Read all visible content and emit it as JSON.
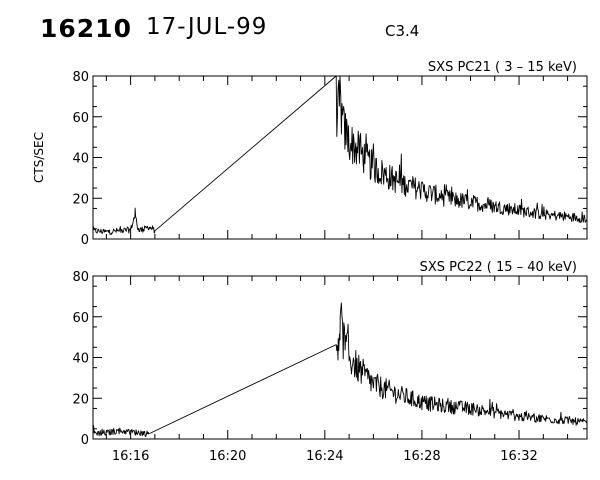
{
  "header": {
    "event_id": "16210",
    "date": "17-JUL-99",
    "flare_class": "C3.4"
  },
  "chart_data": [
    {
      "type": "line",
      "title": "SXS PC21  (  3 – 15 keV)",
      "ylabel": "CTS/SEC",
      "xlabel": "",
      "x_unit": "time (HH:MM, UT)",
      "ylim": [
        0,
        80
      ],
      "yticks": [
        0,
        20,
        40,
        60,
        80
      ],
      "xlim": [
        "16:14:27",
        "16:34:48"
      ],
      "xtick_labels": [
        "16:16",
        "16:20",
        "16:24",
        "16:28",
        "16:32"
      ],
      "grid": false,
      "series": [
        {
          "x": [
            "16:14:27",
            "16:15:00",
            "16:15:30",
            "16:16:00",
            "16:16:11",
            "16:16:18",
            "16:16:30",
            "16:16:45",
            "16:17:00",
            "16:24:28",
            "16:24:33",
            "16:24:38",
            "16:24:45",
            "16:25:00",
            "16:25:30",
            "16:26:00",
            "16:27:00",
            "16:28:00",
            "16:29:00",
            "16:30:00",
            "16:31:00",
            "16:32:00",
            "16:33:00",
            "16:34:00",
            "16:34:48"
          ],
          "y": [
            4,
            3.5,
            4,
            4.5,
            12,
            5,
            4.5,
            6,
            4,
            64,
            62,
            69,
            55,
            48,
            42,
            35,
            28,
            24,
            20,
            18,
            16,
            14,
            12,
            11,
            10
          ]
        }
      ]
    },
    {
      "type": "line",
      "title": "SXS PC22  ( 15 – 40 keV)",
      "ylabel": "",
      "xlabel": "",
      "x_unit": "time (HH:MM, UT)",
      "ylim": [
        0,
        80
      ],
      "yticks": [
        0,
        20,
        40,
        60,
        80
      ],
      "xlim": [
        "16:14:27",
        "16:34:48"
      ],
      "xtick_labels": [
        "16:16",
        "16:20",
        "16:24",
        "16:28",
        "16:32"
      ],
      "grid": false,
      "series": [
        {
          "x": [
            "16:14:27",
            "16:15:00",
            "16:15:30",
            "16:16:00",
            "16:16:30",
            "16:16:45",
            "16:24:28",
            "16:24:33",
            "16:24:38",
            "16:24:50",
            "16:25:00",
            "16:25:30",
            "16:26:00",
            "16:27:00",
            "16:28:00",
            "16:29:00",
            "16:30:00",
            "16:31:00",
            "16:32:00",
            "16:33:00",
            "16:34:00",
            "16:34:48"
          ],
          "y": [
            3,
            3,
            4,
            3.5,
            3,
            2.5,
            43,
            50,
            57,
            45,
            40,
            33,
            27,
            22,
            18,
            16,
            15,
            13,
            11,
            10,
            9,
            8
          ]
        }
      ]
    }
  ]
}
